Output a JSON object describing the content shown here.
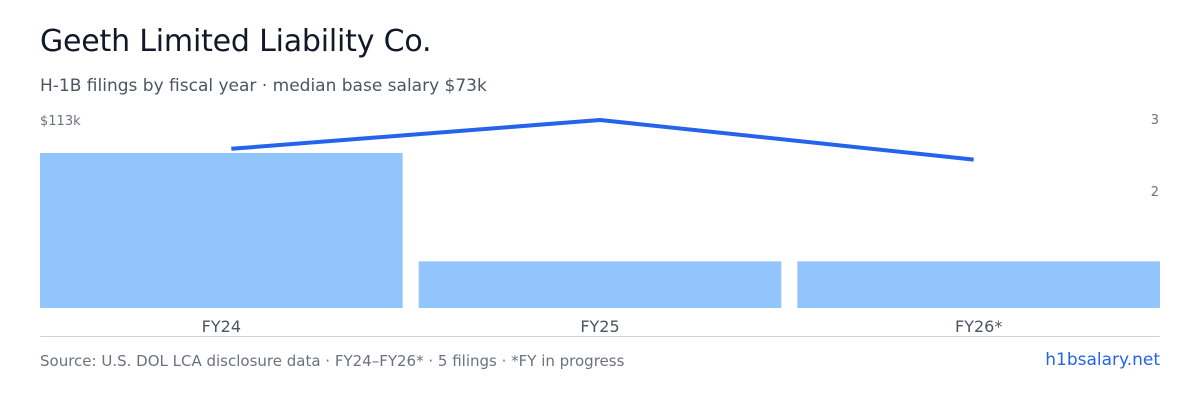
{
  "title": "Geeth Limited Liability Co.",
  "subtitle": "H-1B filings by fiscal year · median base salary $73k",
  "chart_data": {
    "type": "bar",
    "categories": [
      "FY24",
      "FY25",
      "FY26*"
    ],
    "series": [
      {
        "values": [
          113,
          34,
          34
        ],
        "kind": "bar",
        "axis": "left"
      },
      {
        "values": [
          2.6,
          3,
          2.45
        ],
        "kind": "line",
        "axis": "right"
      }
    ],
    "left_axis": {
      "ticks": [
        "$113k"
      ],
      "ylim": [
        0,
        113
      ]
    },
    "right_axis": {
      "ticks": [
        "3",
        "2"
      ],
      "ylim": [
        0,
        3
      ]
    },
    "colors": {
      "bar": "#93c5fd",
      "line": "#2563eb",
      "baseline": "#d1d5db"
    }
  },
  "footer": {
    "source": "Source: U.S. DOL LCA disclosure data · FY24–FY26* · 5 filings · *FY in progress",
    "brand": "h1bsalary.net"
  }
}
